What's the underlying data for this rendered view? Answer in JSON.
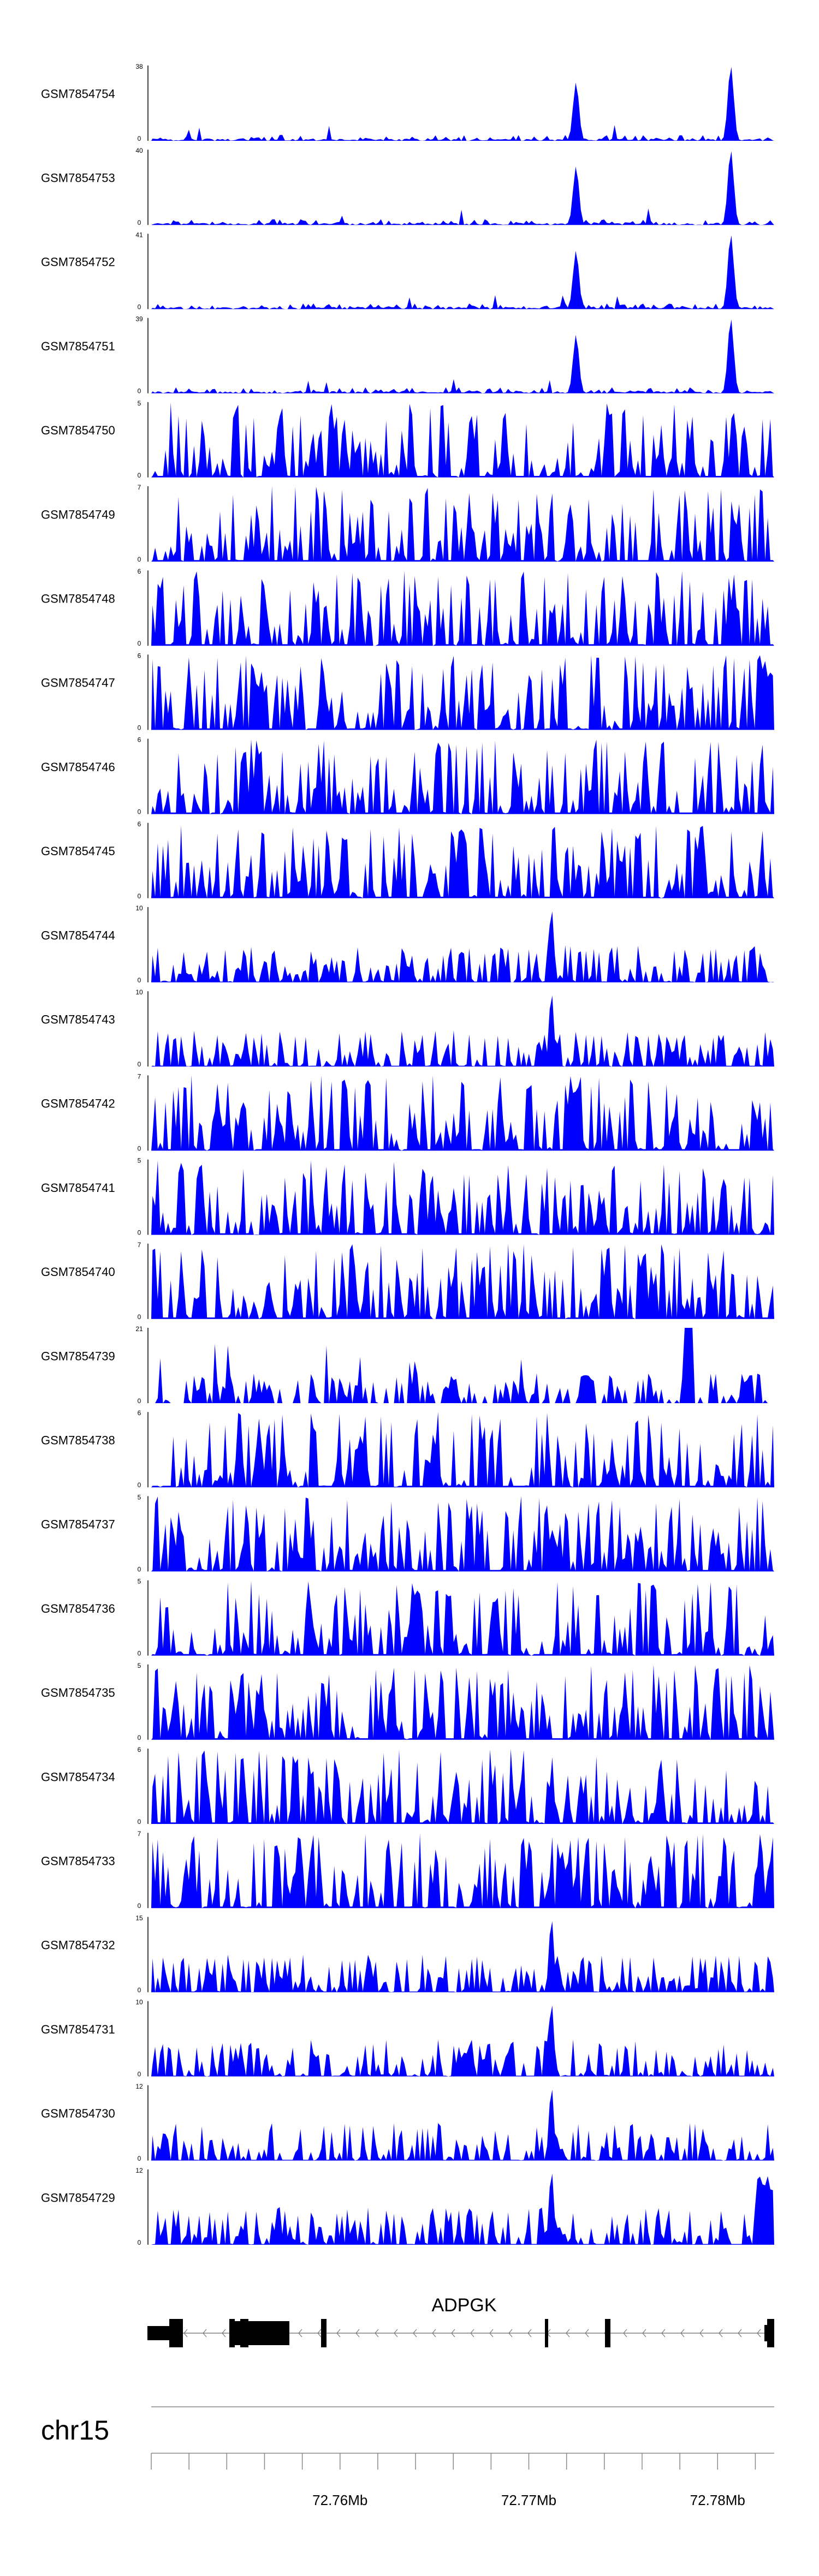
{
  "chart_data": {
    "type": "area",
    "tracks": [
      {
        "name": "GSM7854754",
        "ymax": "38",
        "ylabel_min": "0",
        "kind": "peaks"
      },
      {
        "name": "GSM7854753",
        "ymax": "40",
        "ylabel_min": "0",
        "kind": "peaks"
      },
      {
        "name": "GSM7854752",
        "ymax": "41",
        "ylabel_min": "0",
        "kind": "peaks"
      },
      {
        "name": "GSM7854751",
        "ymax": "39",
        "ylabel_min": "0",
        "kind": "peaks"
      },
      {
        "name": "GSM7854750",
        "ymax": "5",
        "ylabel_min": "0",
        "kind": "noise"
      },
      {
        "name": "GSM7854749",
        "ymax": "7",
        "ylabel_min": "0",
        "kind": "noise"
      },
      {
        "name": "GSM7854748",
        "ymax": "6",
        "ylabel_min": "0",
        "kind": "noise"
      },
      {
        "name": "GSM7854747",
        "ymax": "6",
        "ylabel_min": "0",
        "kind": "noise_right"
      },
      {
        "name": "GSM7854746",
        "ymax": "6",
        "ylabel_min": "0",
        "kind": "noise"
      },
      {
        "name": "GSM7854745",
        "ymax": "6",
        "ylabel_min": "0",
        "kind": "noise"
      },
      {
        "name": "GSM7854744",
        "ymax": "10",
        "ylabel_min": "0",
        "kind": "center_peak"
      },
      {
        "name": "GSM7854743",
        "ymax": "10",
        "ylabel_min": "0",
        "kind": "center_peak"
      },
      {
        "name": "GSM7854742",
        "ymax": "7",
        "ylabel_min": "0",
        "kind": "noise"
      },
      {
        "name": "GSM7854741",
        "ymax": "5",
        "ylabel_min": "0",
        "kind": "noise"
      },
      {
        "name": "GSM7854740",
        "ymax": "7",
        "ylabel_min": "0",
        "kind": "noise"
      },
      {
        "name": "GSM7854739",
        "ymax": "21",
        "ylabel_min": "0",
        "kind": "sparse"
      },
      {
        "name": "GSM7854738",
        "ymax": "6",
        "ylabel_min": "0",
        "kind": "noise"
      },
      {
        "name": "GSM7854737",
        "ymax": "5",
        "ylabel_min": "0",
        "kind": "noise"
      },
      {
        "name": "GSM7854736",
        "ymax": "5",
        "ylabel_min": "0",
        "kind": "noise"
      },
      {
        "name": "GSM7854735",
        "ymax": "5",
        "ylabel_min": "0",
        "kind": "noise"
      },
      {
        "name": "GSM7854734",
        "ymax": "6",
        "ylabel_min": "0",
        "kind": "noise"
      },
      {
        "name": "GSM7854733",
        "ymax": "7",
        "ylabel_min": "0",
        "kind": "noise"
      },
      {
        "name": "GSM7854732",
        "ymax": "15",
        "ylabel_min": "0",
        "kind": "center_peak"
      },
      {
        "name": "GSM7854731",
        "ymax": "10",
        "ylabel_min": "0",
        "kind": "center_peak"
      },
      {
        "name": "GSM7854730",
        "ymax": "12",
        "ylabel_min": "0",
        "kind": "center_peak"
      },
      {
        "name": "GSM7854729",
        "ymax": "12",
        "ylabel_min": "0",
        "kind": "center_peak_right"
      }
    ],
    "peaks": [
      72.7725,
      72.7807
    ],
    "center_peak": 72.7712,
    "gene": {
      "name": "ADPGK",
      "strand": "-"
    },
    "chromosome": "chr15",
    "x_range": [
      72.75,
      72.783
    ],
    "x_ticks": [
      72.76,
      72.77,
      72.78
    ],
    "x_tick_labels": [
      "72.76Mb",
      "72.77Mb",
      "72.78Mb"
    ],
    "minor_tick_step": 0.002,
    "fill_color": "#0000ff",
    "axis_color": "#000000"
  }
}
